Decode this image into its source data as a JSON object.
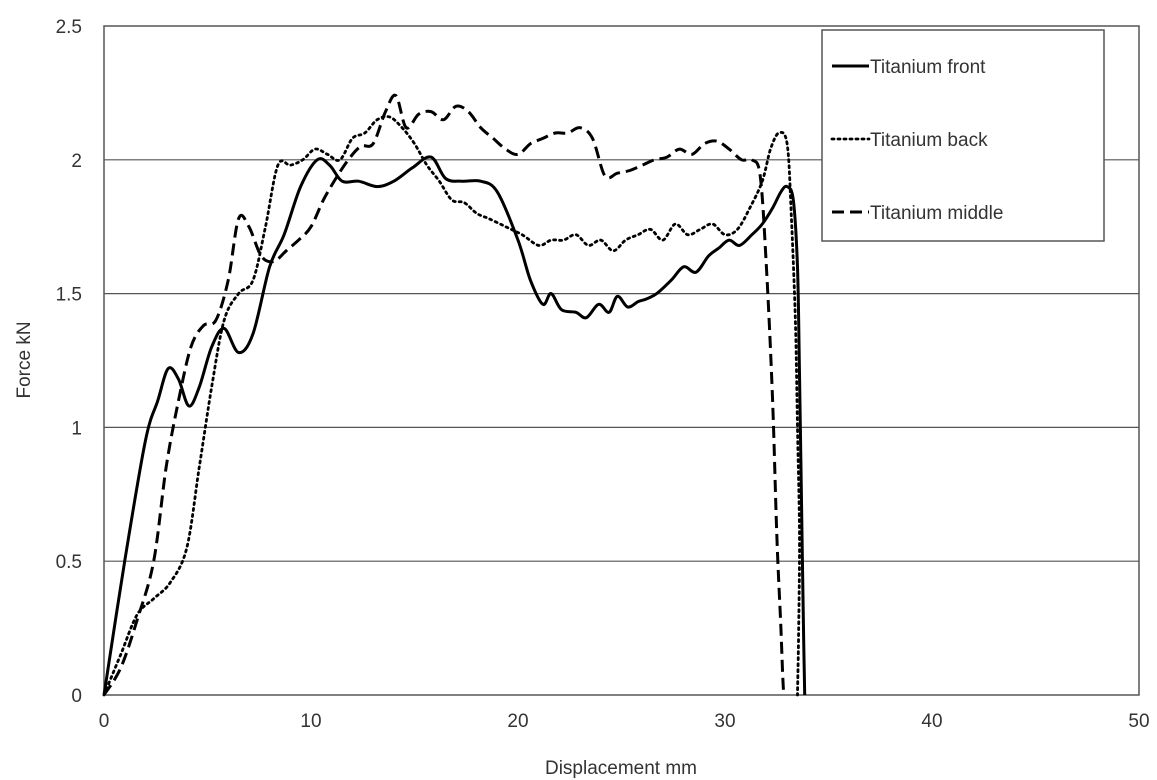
{
  "chart_data": {
    "type": "line",
    "title": "",
    "xlabel": "Displacement mm",
    "ylabel": "Force kN",
    "xlim": [
      0,
      50
    ],
    "ylim": [
      0,
      2.5
    ],
    "x_ticks": [
      "0",
      "10",
      "20",
      "30",
      "40",
      "50"
    ],
    "y_ticks": [
      "0",
      "0.5",
      "1",
      "1.5",
      "2",
      "2.5"
    ],
    "grid": "horizontal",
    "legend_position": "top-right",
    "series": [
      {
        "name": "Titanium front",
        "style": "solid",
        "color": "#000000",
        "x": [
          0,
          1,
          2,
          2.6,
          3.1,
          3.6,
          4.1,
          4.6,
          5.2,
          5.8,
          6.5,
          7.2,
          8,
          8.7,
          9.5,
          10.3,
          10.9,
          11.5,
          12.3,
          13.2,
          14,
          14.9,
          15.8,
          16.5,
          17.3,
          18.2,
          19,
          20,
          20.6,
          21.2,
          21.6,
          22.1,
          22.8,
          23.3,
          23.9,
          24.4,
          24.8,
          25.3,
          25.8,
          26.2,
          26.7,
          27.4,
          28,
          28.6,
          29.2,
          29.7,
          30.2,
          30.7,
          31.3,
          31.8,
          32.3,
          32.7,
          33,
          33.3,
          33.5,
          33.6,
          33.7,
          33.8,
          33.85
        ],
        "values": [
          0,
          0.5,
          0.95,
          1.1,
          1.22,
          1.18,
          1.08,
          1.15,
          1.3,
          1.37,
          1.28,
          1.35,
          1.6,
          1.72,
          1.9,
          2,
          1.98,
          1.92,
          1.92,
          1.9,
          1.92,
          1.97,
          2.01,
          1.93,
          1.92,
          1.92,
          1.88,
          1.7,
          1.55,
          1.46,
          1.5,
          1.44,
          1.43,
          1.41,
          1.46,
          1.43,
          1.49,
          1.45,
          1.47,
          1.48,
          1.5,
          1.55,
          1.6,
          1.58,
          1.64,
          1.67,
          1.7,
          1.68,
          1.72,
          1.76,
          1.82,
          1.88,
          1.9,
          1.85,
          1.6,
          1.2,
          0.7,
          0.2,
          0
        ]
      },
      {
        "name": "Titanium back",
        "style": "dotted",
        "color": "#000000",
        "x": [
          0,
          0.8,
          1.6,
          2.4,
          3.2,
          4,
          4.6,
          5.2,
          5.8,
          6.5,
          7.2,
          7.8,
          8.4,
          9,
          9.6,
          10.2,
          10.8,
          11.4,
          12,
          12.6,
          13.2,
          13.8,
          14.4,
          15,
          15.6,
          16.2,
          16.8,
          17.4,
          18,
          18.6,
          19.4,
          20.2,
          21,
          21.6,
          22.2,
          22.8,
          23.4,
          24,
          24.6,
          25.2,
          25.8,
          26.4,
          27,
          27.6,
          28.2,
          28.8,
          29.4,
          30,
          30.6,
          31.2,
          31.8,
          32.2,
          32.6,
          33,
          33.2,
          33.4,
          33.5,
          33.6,
          33.55,
          33.5
        ],
        "values": [
          0,
          0.15,
          0.3,
          0.36,
          0.42,
          0.55,
          0.85,
          1.15,
          1.4,
          1.5,
          1.55,
          1.75,
          1.98,
          1.98,
          2,
          2.04,
          2.02,
          2,
          2.08,
          2.1,
          2.15,
          2.16,
          2.12,
          2.06,
          1.98,
          1.92,
          1.85,
          1.84,
          1.8,
          1.78,
          1.75,
          1.72,
          1.68,
          1.7,
          1.7,
          1.72,
          1.68,
          1.7,
          1.66,
          1.7,
          1.72,
          1.74,
          1.7,
          1.76,
          1.72,
          1.74,
          1.76,
          1.72,
          1.74,
          1.82,
          1.92,
          2.04,
          2.1,
          2.06,
          1.8,
          1.4,
          1,
          0.6,
          0.2,
          0
        ]
      },
      {
        "name": "Titanium middle",
        "style": "dashed",
        "color": "#000000",
        "x": [
          0,
          0.8,
          1.6,
          2.4,
          3,
          3.6,
          4.2,
          4.8,
          5.4,
          6,
          6.5,
          7,
          7.6,
          8.2,
          8.8,
          9.4,
          10,
          10.6,
          11.2,
          11.8,
          12.4,
          13,
          13.6,
          14.1,
          14.6,
          15.2,
          15.8,
          16.4,
          17,
          17.6,
          18.2,
          18.8,
          19.4,
          20,
          20.6,
          21.2,
          21.8,
          22.4,
          23,
          23.6,
          24.2,
          24.8,
          25.4,
          26,
          26.6,
          27.2,
          27.8,
          28.4,
          29,
          29.6,
          30.2,
          30.8,
          31.3,
          31.7,
          32,
          32.3,
          32.5,
          32.7,
          32.8,
          32.85
        ],
        "values": [
          0,
          0.1,
          0.28,
          0.5,
          0.85,
          1.1,
          1.3,
          1.38,
          1.4,
          1.55,
          1.78,
          1.75,
          1.64,
          1.62,
          1.66,
          1.7,
          1.75,
          1.85,
          1.93,
          2,
          2.05,
          2.06,
          2.18,
          2.24,
          2.12,
          2.17,
          2.18,
          2.15,
          2.2,
          2.18,
          2.12,
          2.08,
          2.04,
          2.02,
          2.06,
          2.08,
          2.1,
          2.1,
          2.12,
          2.08,
          1.94,
          1.95,
          1.96,
          1.98,
          2,
          2.01,
          2.04,
          2.02,
          2.06,
          2.07,
          2.04,
          2,
          2,
          1.94,
          1.6,
          1.1,
          0.6,
          0.25,
          0.05,
          0
        ]
      }
    ]
  }
}
